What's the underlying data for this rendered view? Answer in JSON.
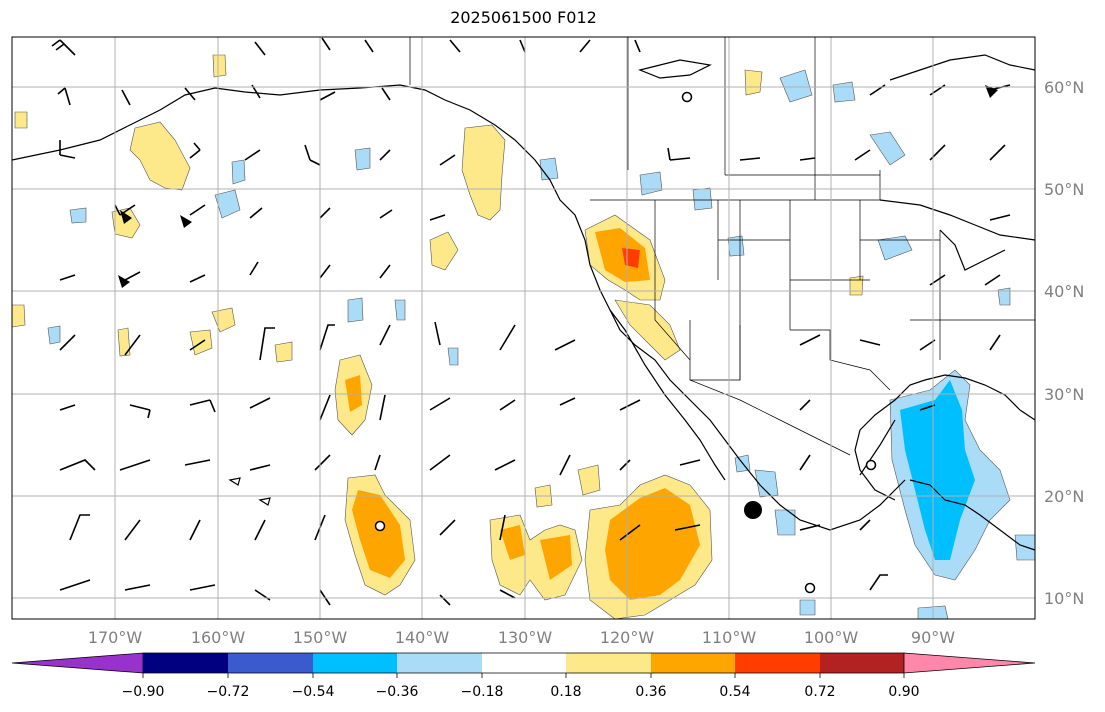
{
  "title": "2025061500 F012",
  "map": {
    "longitude_labels": [
      "170°W",
      "160°W",
      "150°W",
      "140°W",
      "130°W",
      "120°W",
      "110°W",
      "100°W",
      "90°W"
    ],
    "latitude_labels": [
      "60°N",
      "50°N",
      "40°N",
      "30°N",
      "20°N",
      "10°N"
    ],
    "colorbar": {
      "ticks": [
        "−0.90",
        "−0.72",
        "−0.54",
        "−0.36",
        "−0.18",
        "0.18",
        "0.36",
        "0.54",
        "0.72",
        "0.90"
      ],
      "colors": [
        "#9932cc",
        "#000080",
        "#3a5bcd",
        "#00bfff",
        "#aadcf8",
        "#ffffff",
        "#fde98a",
        "#ffa500",
        "#ff3d00",
        "#b22222",
        "#ff88aa"
      ]
    },
    "colors": {
      "gridline": "#b0b0b0",
      "coast": "#000000",
      "label": "#808080"
    }
  }
}
